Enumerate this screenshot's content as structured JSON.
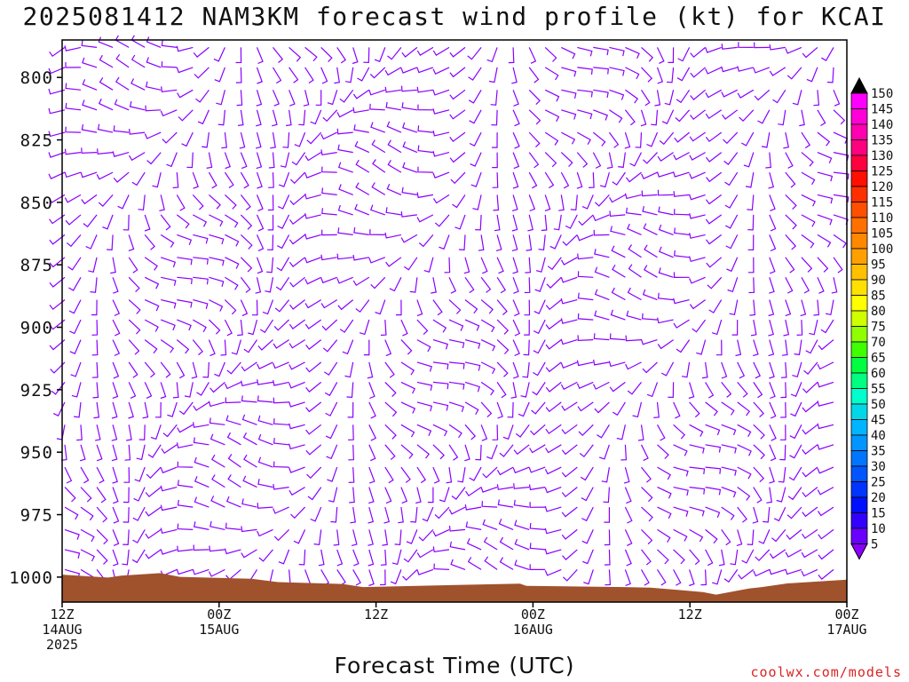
{
  "chart_data": {
    "type": "wind-barb-time-height",
    "title": "2025081412 NAM3KM forecast wind profile (kt) for KCAI",
    "xlabel": "Forecast Time (UTC)",
    "ylabel": "",
    "credit": "coolwx.com/models",
    "x_ticks": [
      {
        "hour": 0,
        "lines": [
          "12Z",
          "14AUG",
          "2025"
        ]
      },
      {
        "hour": 12,
        "lines": [
          "00Z",
          "15AUG"
        ]
      },
      {
        "hour": 24,
        "lines": [
          "12Z"
        ]
      },
      {
        "hour": 36,
        "lines": [
          "00Z",
          "16AUG"
        ]
      },
      {
        "hour": 48,
        "lines": [
          "12Z"
        ]
      },
      {
        "hour": 60,
        "lines": [
          "00Z",
          "17AUG"
        ]
      }
    ],
    "xlim_hours": [
      0,
      60
    ],
    "ylim_hpa": [
      1010,
      785
    ],
    "y_ticks": [
      800,
      825,
      850,
      875,
      900,
      925,
      950,
      975,
      1000
    ],
    "barb_levels_hpa": [
      788,
      796,
      805,
      813,
      822,
      830,
      838,
      847,
      855,
      863,
      872,
      880,
      889,
      897,
      905,
      914,
      922,
      930,
      939,
      947,
      956,
      964,
      972,
      981,
      989,
      997
    ],
    "wind_color": "#8a00ff",
    "terrain_color": "#a0522d",
    "colorbar": {
      "units": "kt",
      "labels": [
        5,
        10,
        15,
        20,
        25,
        30,
        35,
        40,
        45,
        50,
        55,
        60,
        65,
        70,
        75,
        80,
        85,
        90,
        95,
        100,
        105,
        110,
        115,
        120,
        125,
        130,
        135,
        140,
        145,
        150
      ],
      "colors": [
        "#8a00ff",
        "#6a00ff",
        "#3300ff",
        "#0010ff",
        "#0035ff",
        "#0055ff",
        "#0075ff",
        "#0095ff",
        "#00b5ff",
        "#00d8e8",
        "#00ffcc",
        "#00ff80",
        "#00ff40",
        "#40ff00",
        "#90ff00",
        "#d0ff00",
        "#ffff00",
        "#ffe000",
        "#ffc000",
        "#ffa000",
        "#ff8800",
        "#ff7000",
        "#ff5000",
        "#ff3000",
        "#ff1000",
        "#ff0040",
        "#ff0080",
        "#ff00b0",
        "#ff00d8",
        "#ff00ff"
      ]
    },
    "surface_pressure_hpa": [
      [
        0,
        999
      ],
      [
        3.5,
        1000.2
      ],
      [
        4.5,
        999.4
      ],
      [
        7.5,
        998.4
      ],
      [
        9,
        999.9
      ],
      [
        14.5,
        1000.7
      ],
      [
        16.5,
        1002
      ],
      [
        21.5,
        1002.8
      ],
      [
        23,
        1004
      ],
      [
        35,
        1002.6
      ],
      [
        35.5,
        1003.5
      ],
      [
        43,
        1004
      ],
      [
        45,
        1004.2
      ],
      [
        49,
        1006
      ],
      [
        50,
        1007
      ],
      [
        52.5,
        1004.6
      ],
      [
        53.5,
        1004
      ],
      [
        55.5,
        1002.5
      ],
      [
        60,
        1001
      ]
    ]
  }
}
